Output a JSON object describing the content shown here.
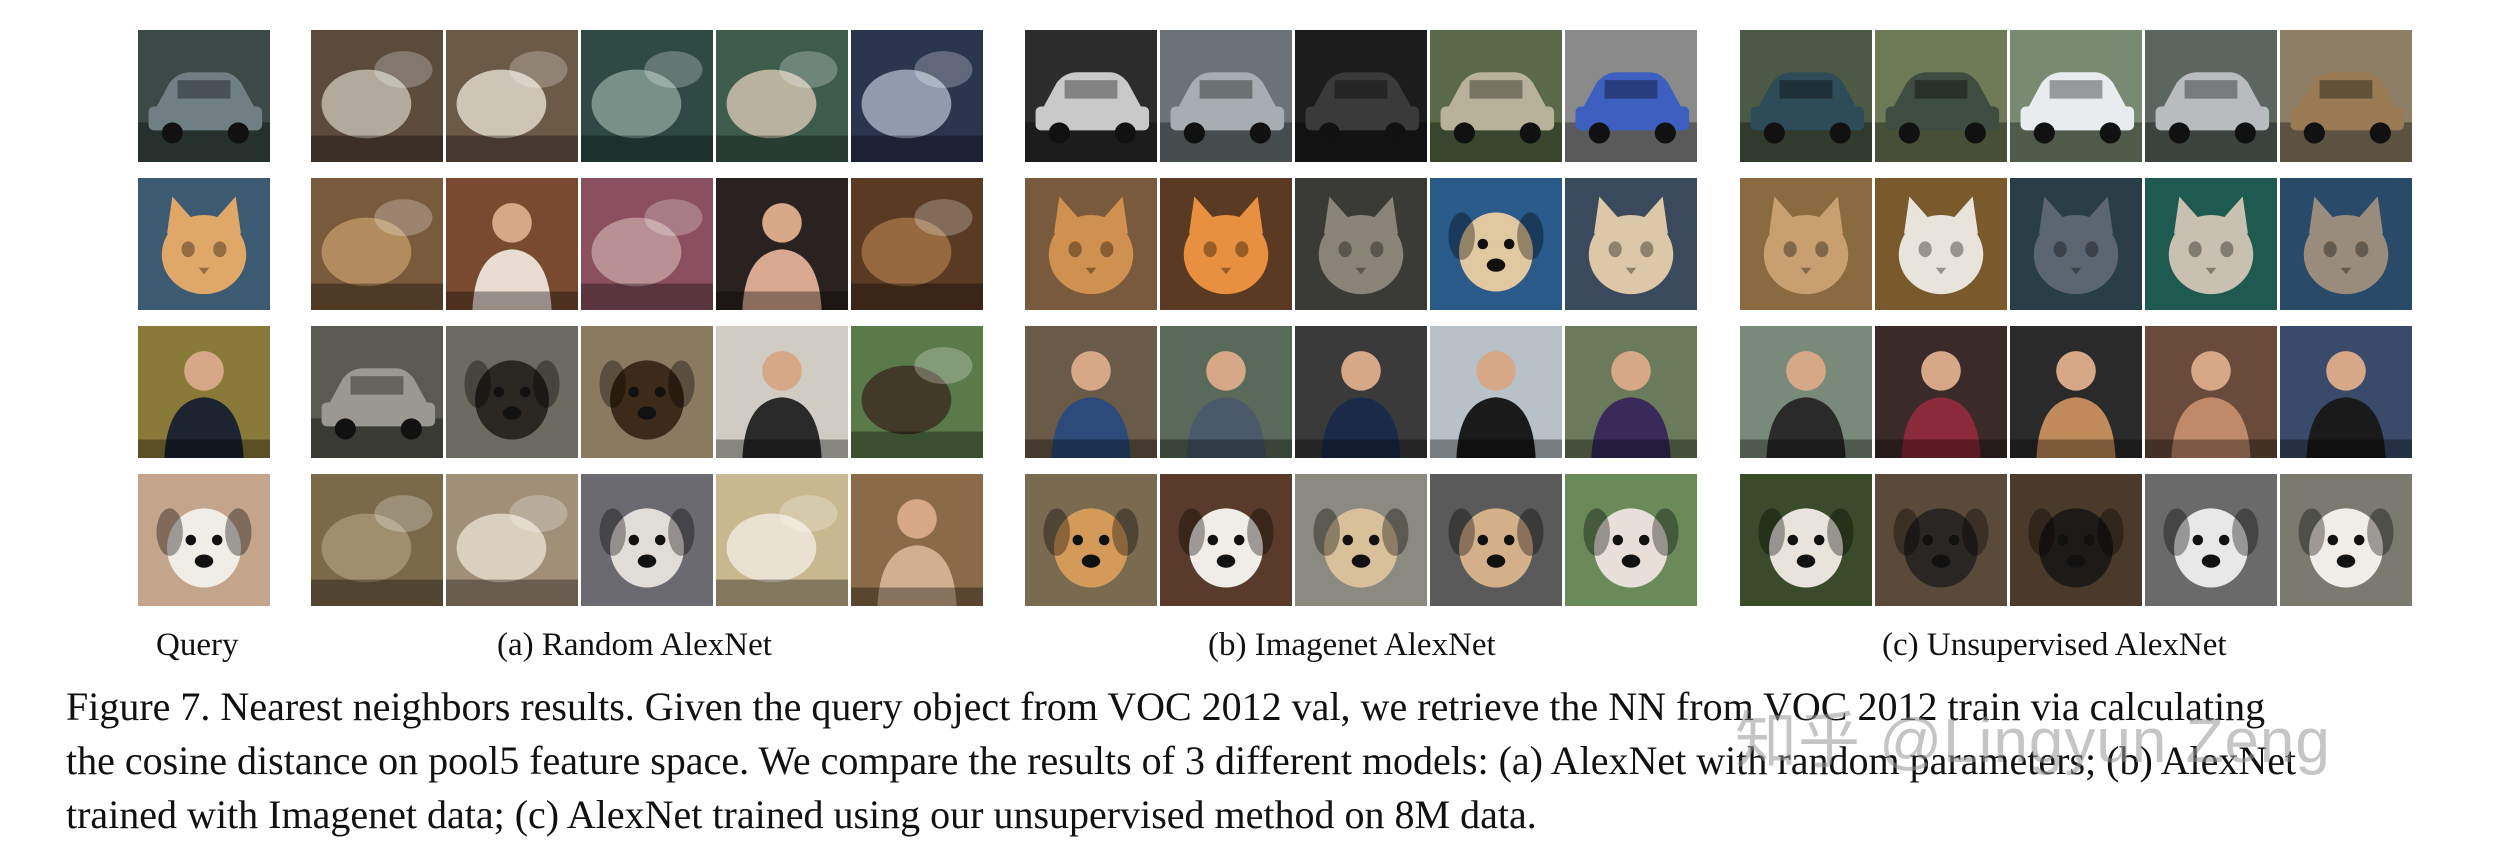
{
  "labels": {
    "query": "Query",
    "random": "(a) Random AlexNet",
    "imagenet": "(b) Imagenet AlexNet",
    "unsupervised": "(c) Unsupervised AlexNet"
  },
  "caption": {
    "line1": "Figure 7.  Nearest neighbors results. Given the query object from VOC 2012 val, we retrieve the NN from VOC 2012 train via calculating",
    "line2": "the cosine distance on pool5 feature space. We compare the results of 3 different models: (a) AlexNet with random parameters; (b) AlexNet",
    "line3": "trained with Imagenet data; (c) AlexNet trained using our unsupervised method on 8M data."
  },
  "watermark": "知乎 @Lingyun Zeng",
  "rows": [
    {
      "query": {
        "name": "query-car-photo",
        "bg": "#3b4a46",
        "fg": "#6f7f84",
        "shape": "car"
      },
      "random": [
        {
          "name": "random-result-1-1",
          "bg": "#5a4b3c",
          "fg": "#c8c3b5",
          "shape": "blob"
        },
        {
          "name": "random-result-1-2",
          "bg": "#6b5a45",
          "fg": "#e6e0d2",
          "shape": "blob"
        },
        {
          "name": "random-result-1-3",
          "bg": "#2f4a44",
          "fg": "#8aa39b",
          "shape": "blob"
        },
        {
          "name": "random-result-1-4",
          "bg": "#3e5c4c",
          "fg": "#d8c8b4",
          "shape": "blob"
        },
        {
          "name": "random-result-1-5",
          "bg": "#2c3550",
          "fg": "#a9b6c8",
          "shape": "blob"
        }
      ],
      "imagenet": [
        {
          "name": "imagenet-result-1-1",
          "bg": "#2c2c2c",
          "fg": "#c9c9c9",
          "shape": "car"
        },
        {
          "name": "imagenet-result-1-2",
          "bg": "#6c7378",
          "fg": "#a7aeb3",
          "shape": "car"
        },
        {
          "name": "imagenet-result-1-3",
          "bg": "#1c1c1c",
          "fg": "#3a3a3a",
          "shape": "car"
        },
        {
          "name": "imagenet-result-1-4",
          "bg": "#5a6a48",
          "fg": "#b9b29a",
          "shape": "car"
        },
        {
          "name": "imagenet-result-1-5",
          "bg": "#8a8a8a",
          "fg": "#3d5fc0",
          "shape": "car"
        }
      ],
      "unsupervised": [
        {
          "name": "unsupervised-result-1-1",
          "bg": "#4c5a45",
          "fg": "#2e4c58",
          "shape": "car"
        },
        {
          "name": "unsupervised-result-1-2",
          "bg": "#6e7a55",
          "fg": "#3f4c42",
          "shape": "car"
        },
        {
          "name": "unsupervised-result-1-3",
          "bg": "#7a8a72",
          "fg": "#e9ecef",
          "shape": "car"
        },
        {
          "name": "unsupervised-result-1-4",
          "bg": "#5c6660",
          "fg": "#b8bcbf",
          "shape": "car"
        },
        {
          "name": "unsupervised-result-1-5",
          "bg": "#8c7f66",
          "fg": "#9a7a55",
          "shape": "car"
        }
      ]
    },
    {
      "query": {
        "name": "query-cat-photo",
        "bg": "#3c5a72",
        "fg": "#e0a868",
        "shape": "cat"
      },
      "random": [
        {
          "name": "random-result-2-1",
          "bg": "#7a5a3c",
          "fg": "#c09868",
          "shape": "blob"
        },
        {
          "name": "random-result-2-2",
          "bg": "#7a4a30",
          "fg": "#e8dcd0",
          "shape": "person"
        },
        {
          "name": "random-result-2-3",
          "bg": "#8a5060",
          "fg": "#c4a0a0",
          "shape": "blob"
        },
        {
          "name": "random-result-2-4",
          "bg": "#2a2220",
          "fg": "#d8a890",
          "shape": "person"
        },
        {
          "name": "random-result-2-5",
          "bg": "#5a3a22",
          "fg": "#a47448",
          "shape": "blob"
        }
      ],
      "imagenet": [
        {
          "name": "imagenet-result-2-1",
          "bg": "#7a5a3c",
          "fg": "#d09050",
          "shape": "cat"
        },
        {
          "name": "imagenet-result-2-2",
          "bg": "#5a3a22",
          "fg": "#e89040",
          "shape": "cat"
        },
        {
          "name": "imagenet-result-2-3",
          "bg": "#3a3a36",
          "fg": "#8a8478",
          "shape": "cat"
        },
        {
          "name": "imagenet-result-2-4",
          "bg": "#2a5a8a",
          "fg": "#e0c8a0",
          "shape": "dog"
        },
        {
          "name": "imagenet-result-2-5",
          "bg": "#3a4a5c",
          "fg": "#dcc8a8",
          "shape": "cat"
        }
      ],
      "unsupervised": [
        {
          "name": "unsupervised-result-2-1",
          "bg": "#8a6a40",
          "fg": "#c8a070",
          "shape": "cat"
        },
        {
          "name": "unsupervised-result-2-2",
          "bg": "#7a5a2c",
          "fg": "#e8e4dc",
          "shape": "cat"
        },
        {
          "name": "unsupervised-result-2-3",
          "bg": "#2a3e48",
          "fg": "#5c6670",
          "shape": "cat"
        },
        {
          "name": "unsupervised-result-2-4",
          "bg": "#1e5a50",
          "fg": "#c8c0b0",
          "shape": "cat"
        },
        {
          "name": "unsupervised-result-2-5",
          "bg": "#2a4a6a",
          "fg": "#9a8c7c",
          "shape": "cat"
        }
      ]
    },
    {
      "query": {
        "name": "query-person-photo",
        "bg": "#8a7a3a",
        "fg": "#1c2430",
        "shape": "person"
      },
      "random": [
        {
          "name": "random-result-3-1",
          "bg": "#5a5a52",
          "fg": "#9a9890",
          "shape": "car"
        },
        {
          "name": "random-result-3-2",
          "bg": "#6a6a60",
          "fg": "#2a2622",
          "shape": "dog"
        },
        {
          "name": "random-result-3-3",
          "bg": "#8a7a60",
          "fg": "#3c2a1a",
          "shape": "dog"
        },
        {
          "name": "random-result-3-4",
          "bg": "#d0ccc4",
          "fg": "#2a2a2a",
          "shape": "person"
        },
        {
          "name": "random-result-3-5",
          "bg": "#5a7a4a",
          "fg": "#3a2a1e",
          "shape": "blob"
        }
      ],
      "imagenet": [
        {
          "name": "imagenet-result-3-1",
          "bg": "#6a5a48",
          "fg": "#2c4a7a",
          "shape": "person"
        },
        {
          "name": "imagenet-result-3-2",
          "bg": "#5a6a5a",
          "fg": "#4a5a6a",
          "shape": "person"
        },
        {
          "name": "imagenet-result-3-3",
          "bg": "#3a3a3a",
          "fg": "#1c2a4a",
          "shape": "person"
        },
        {
          "name": "imagenet-result-3-4",
          "bg": "#b8c0c8",
          "fg": "#1a1a1a",
          "shape": "person"
        },
        {
          "name": "imagenet-result-3-5",
          "bg": "#6a7a5a",
          "fg": "#3a2a5a",
          "shape": "person"
        }
      ],
      "unsupervised": [
        {
          "name": "unsupervised-result-3-1",
          "bg": "#7a8a7a",
          "fg": "#2a2a2a",
          "shape": "person"
        },
        {
          "name": "unsupervised-result-3-2",
          "bg": "#3a2a2a",
          "fg": "#8a2a3a",
          "shape": "person"
        },
        {
          "name": "unsupervised-result-3-3",
          "bg": "#2a2a2a",
          "fg": "#c08a5a",
          "shape": "person"
        },
        {
          "name": "unsupervised-result-3-4",
          "bg": "#6a4a3a",
          "fg": "#c08a6a",
          "shape": "person"
        },
        {
          "name": "unsupervised-result-3-5",
          "bg": "#3a4a6a",
          "fg": "#1a1a1a",
          "shape": "person"
        }
      ]
    },
    {
      "query": {
        "name": "query-dog-photo",
        "bg": "#c4a48a",
        "fg": "#f0ece6",
        "shape": "dog"
      },
      "random": [
        {
          "name": "random-result-4-1",
          "bg": "#7a6a4a",
          "fg": "#a89878",
          "shape": "blob"
        },
        {
          "name": "random-result-4-2",
          "bg": "#a09078",
          "fg": "#e8e0d0",
          "shape": "blob"
        },
        {
          "name": "random-result-4-3",
          "bg": "#6a6a70",
          "fg": "#e0dcd8",
          "shape": "dog"
        },
        {
          "name": "random-result-4-4",
          "bg": "#c8b890",
          "fg": "#f2ece0",
          "shape": "blob"
        },
        {
          "name": "random-result-4-5",
          "bg": "#8a6a48",
          "fg": "#d0b090",
          "shape": "person"
        }
      ],
      "imagenet": [
        {
          "name": "imagenet-result-4-1",
          "bg": "#7a6a50",
          "fg": "#d49a5a",
          "shape": "dog"
        },
        {
          "name": "imagenet-result-4-2",
          "bg": "#5a3a2a",
          "fg": "#f0ece8",
          "shape": "dog"
        },
        {
          "name": "imagenet-result-4-3",
          "bg": "#8a8a80",
          "fg": "#d8c09a",
          "shape": "dog"
        },
        {
          "name": "imagenet-result-4-4",
          "bg": "#5a5a5a",
          "fg": "#d4b08a",
          "shape": "dog"
        },
        {
          "name": "imagenet-result-4-5",
          "bg": "#6a8a5a",
          "fg": "#e8e0d8",
          "shape": "dog"
        }
      ],
      "unsupervised": [
        {
          "name": "unsupervised-result-4-1",
          "bg": "#3a4a2a",
          "fg": "#e8e4dc",
          "shape": "dog"
        },
        {
          "name": "unsupervised-result-4-2",
          "bg": "#5a4a3a",
          "fg": "#2a2624",
          "shape": "dog"
        },
        {
          "name": "unsupervised-result-4-3",
          "bg": "#4a3a2a",
          "fg": "#1e1a18",
          "shape": "dog"
        },
        {
          "name": "unsupervised-result-4-4",
          "bg": "#6a6a6a",
          "fg": "#e8e8e8",
          "shape": "dog"
        },
        {
          "name": "unsupervised-result-4-5",
          "bg": "#7a7a70",
          "fg": "#f0ece8",
          "shape": "dog"
        }
      ]
    }
  ]
}
